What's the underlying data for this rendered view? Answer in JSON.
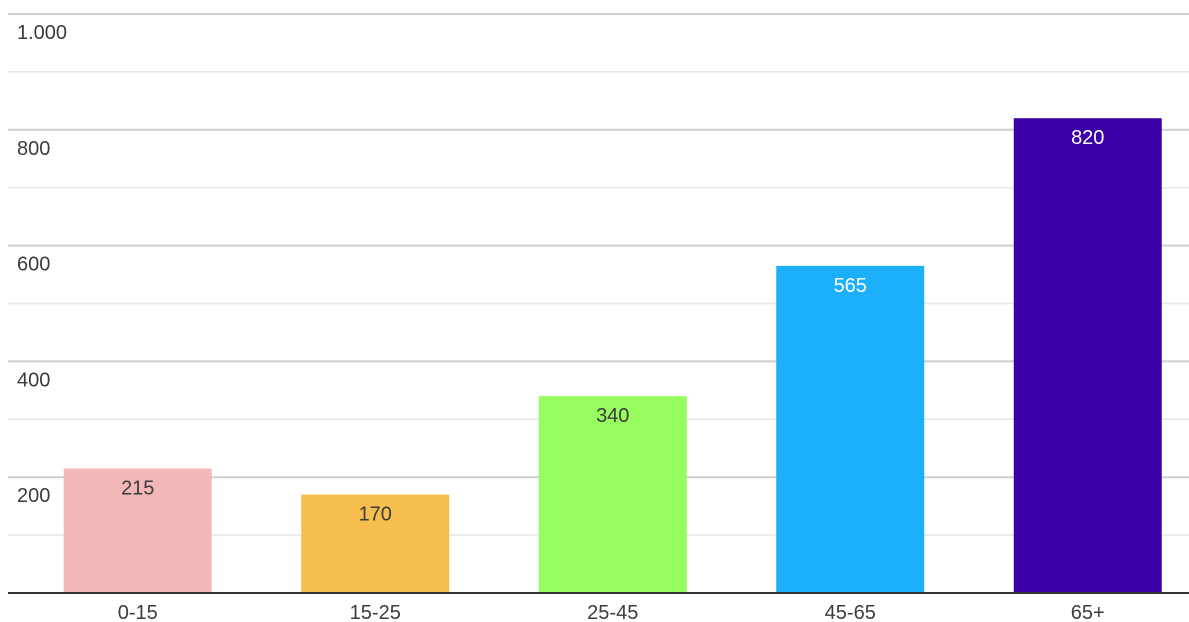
{
  "chart_data": {
    "type": "bar",
    "title": "",
    "xlabel": "",
    "ylabel": "",
    "categories": [
      "0-15",
      "15-25",
      "25-45",
      "45-65",
      "65+"
    ],
    "values": [
      215,
      170,
      340,
      565,
      820
    ],
    "data_labels": [
      "215",
      "170",
      "340",
      "565",
      "820"
    ],
    "bar_colors": [
      "#f2b8b8",
      "#f6be4e",
      "#97fc5f",
      "#1cb0fb",
      "#3c00a8"
    ],
    "label_colors": [
      "#3c3c3c",
      "#3c3c3c",
      "#3c3c3c",
      "#ffffff",
      "#ffffff"
    ],
    "ylim": [
      0,
      1000
    ],
    "y_ticks": [
      {
        "value": 200,
        "label": "200"
      },
      {
        "value": 400,
        "label": "400"
      },
      {
        "value": 600,
        "label": "600"
      },
      {
        "value": 800,
        "label": "800"
      },
      {
        "value": 1000,
        "label": "1.000"
      }
    ],
    "gridlines": true,
    "legend": "none"
  }
}
